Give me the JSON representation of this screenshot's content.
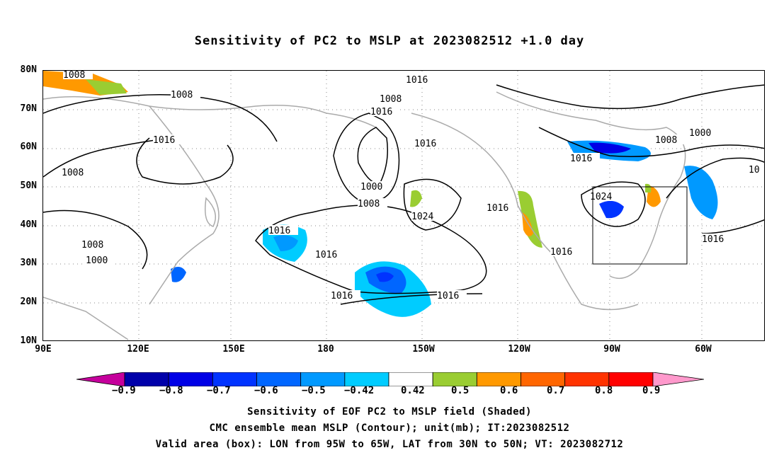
{
  "title": "Sensitivity of PC2 to MSLP at 2023082512 +1.0 day",
  "map": {
    "lat_labels": [
      "80N",
      "70N",
      "60N",
      "50N",
      "40N",
      "30N",
      "20N",
      "10N"
    ],
    "lon_labels": [
      "90E",
      "120E",
      "150E",
      "180",
      "150W",
      "120W",
      "90W",
      "60W"
    ],
    "contour_labels": [
      "1008",
      "1008",
      "1016",
      "1008",
      "1008",
      "1000",
      "1016",
      "1016",
      "1016",
      "1008",
      "1000",
      "1008",
      "1016",
      "1024",
      "1016",
      "1016",
      "1024",
      "1016",
      "1016",
      "1016",
      "1016",
      "1008",
      "1000",
      "1016",
      "10"
    ],
    "box": {
      "lon_from": "95W",
      "lon_to": "65W",
      "lat_from": "30N",
      "lat_to": "50N"
    },
    "colors": {
      "coastline": "#aaaaaa",
      "contour": "#000000",
      "grid": "#888888"
    }
  },
  "colorbar": {
    "labels": [
      "−0.9",
      "−0.8",
      "−0.7",
      "−0.6",
      "−0.5",
      "−0.42",
      "0.42",
      "0.5",
      "0.6",
      "0.7",
      "0.8",
      "0.9"
    ],
    "colors": [
      "#c5009c",
      "#0000aa",
      "#0000e6",
      "#0033ff",
      "#0066ff",
      "#0099ff",
      "#00ccff",
      "#ffffff",
      "#9acd32",
      "#ff9900",
      "#ff6600",
      "#ff3300",
      "#ff0000",
      "#ff99cc"
    ]
  },
  "captions": [
    "Sensitivity of EOF PC2 to MSLP field (Shaded)",
    "CMC ensemble mean MSLP (Contour); unit(mb); IT:2023082512",
    "Valid area (box): LON from 95W to 65W, LAT from 30N to 50N; VT: 2023082712"
  ]
}
